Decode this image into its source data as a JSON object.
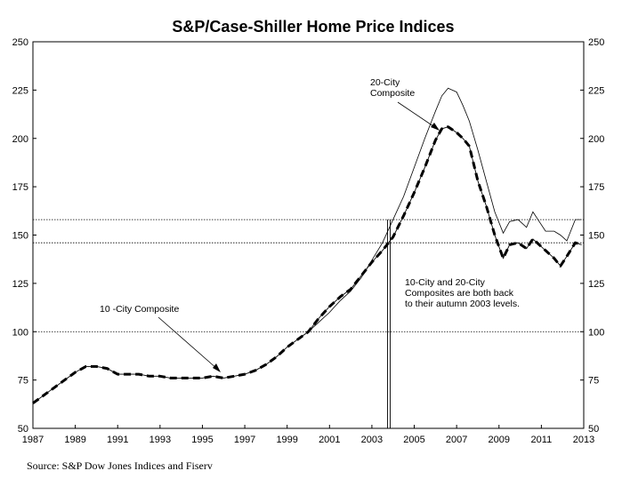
{
  "chart_data": {
    "type": "line",
    "title": "S&P/Case-Shiller Home Price Indices",
    "xlim": [
      1987,
      2013
    ],
    "ylim": [
      50,
      250
    ],
    "yticks": [
      50,
      75,
      100,
      125,
      150,
      175,
      200,
      225,
      250
    ],
    "xticks": [
      "1987",
      "1989",
      "1991",
      "1993",
      "1995",
      "1997",
      "1999",
      "2001",
      "2003",
      "2005",
      "2007",
      "2009",
      "2011",
      "2013"
    ],
    "reference_lines": [
      158,
      146,
      100
    ],
    "marker_x": 2003.8,
    "series": [
      {
        "name": "20-City Composite",
        "style": "thin",
        "x": [
          2000.0,
          2000.5,
          2001.0,
          2001.5,
          2002.0,
          2002.5,
          2003.0,
          2003.5,
          2004.0,
          2004.5,
          2005.0,
          2005.5,
          2006.0,
          2006.3,
          2006.6,
          2007.0,
          2007.3,
          2007.6,
          2008.0,
          2008.4,
          2008.8,
          2009.2,
          2009.5,
          2009.9,
          2010.3,
          2010.6,
          2010.9,
          2011.2,
          2011.6,
          2011.9,
          2012.2,
          2012.6,
          2012.9
        ],
        "values": [
          100,
          105,
          110,
          116,
          121,
          128,
          137,
          146,
          158,
          170,
          185,
          200,
          214,
          222,
          226,
          224,
          217,
          209,
          194,
          178,
          162,
          151,
          157,
          158,
          154,
          162,
          157,
          152,
          152,
          150,
          147,
          158,
          158
        ]
      },
      {
        "name": "10-City Composite",
        "style": "thick-dashed",
        "x": [
          1987.0,
          1987.5,
          1988.0,
          1988.5,
          1989.0,
          1989.5,
          1990.0,
          1990.5,
          1991.0,
          1991.5,
          1992.0,
          1992.5,
          1993.0,
          1993.5,
          1994.0,
          1994.5,
          1995.0,
          1995.5,
          1996.0,
          1996.5,
          1997.0,
          1997.5,
          1998.0,
          1998.5,
          1999.0,
          1999.5,
          2000.0,
          2000.5,
          2001.0,
          2001.5,
          2002.0,
          2002.5,
          2003.0,
          2003.5,
          2004.0,
          2004.5,
          2005.0,
          2005.5,
          2006.0,
          2006.3,
          2006.6,
          2007.0,
          2007.3,
          2007.6,
          2008.0,
          2008.4,
          2008.8,
          2009.2,
          2009.5,
          2009.9,
          2010.3,
          2010.6,
          2010.9,
          2011.2,
          2011.6,
          2011.9,
          2012.2,
          2012.6,
          2012.9
        ],
        "values": [
          63,
          67,
          71,
          75,
          79,
          82,
          82,
          81,
          78,
          78,
          78,
          77,
          77,
          76,
          76,
          76,
          76,
          77,
          76,
          77,
          78,
          80,
          83,
          87,
          92,
          96,
          100,
          107,
          113,
          118,
          122,
          129,
          136,
          142,
          149,
          160,
          172,
          185,
          199,
          205,
          206,
          203,
          200,
          196,
          178,
          165,
          150,
          138,
          145,
          146,
          143,
          148,
          145,
          142,
          138,
          134,
          139,
          146,
          145
        ]
      }
    ],
    "annotations": {
      "label_20city_line1": "20-City",
      "label_20city_line2": "Composite",
      "label_10city": "10 -City Composite",
      "note_line1": "10-City and 20-City",
      "note_line2": "Composites  are  both  back",
      "note_line3": "to their autumn  2003 levels."
    },
    "source": "Source:  S&P Dow Jones Indices and Fiserv",
    "grid": false,
    "legend": "none"
  }
}
